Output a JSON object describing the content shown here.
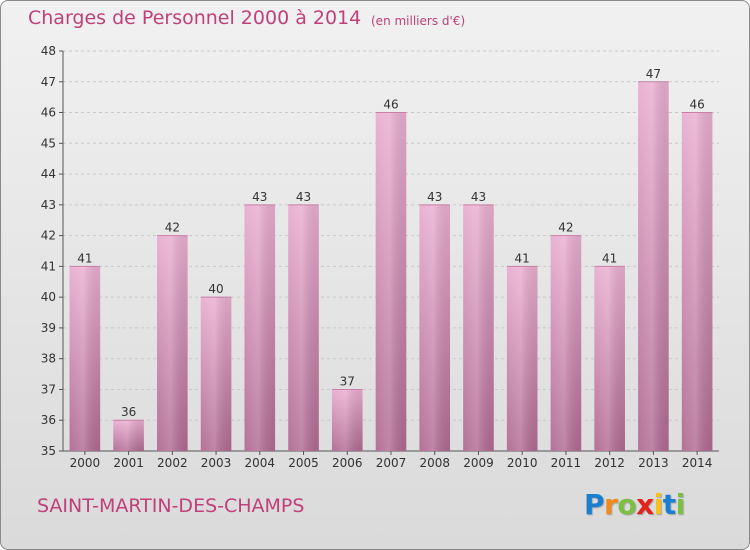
{
  "title": "Charges de Personnel 2000 à 2014",
  "subtitle": "(en milliers d'€)",
  "commune": "SAINT-MARTIN-DES-CHAMPS",
  "logo": {
    "letters": [
      "P",
      "r",
      "o",
      "x",
      "i",
      "t",
      "i"
    ],
    "colors": [
      "#1a7fd1",
      "#f08a1c",
      "#7bc043",
      "#e2231a",
      "#f6c018",
      "#1a7fd1",
      "#7bc043"
    ]
  },
  "colors": {
    "bar_top": "#e9aed0",
    "bar_bottom": "#b06a92",
    "text": "#c0407a"
  },
  "chart_data": {
    "type": "bar",
    "categories": [
      "2000",
      "2001",
      "2002",
      "2003",
      "2004",
      "2005",
      "2006",
      "2007",
      "2008",
      "2009",
      "2010",
      "2011",
      "2012",
      "2013",
      "2014"
    ],
    "values": [
      41,
      36,
      42,
      40,
      43,
      43,
      37,
      46,
      43,
      43,
      41,
      42,
      41,
      47,
      46
    ],
    "ylim": [
      35,
      48
    ],
    "yticks": [
      35,
      36,
      37,
      38,
      39,
      40,
      41,
      42,
      43,
      44,
      45,
      46,
      47,
      48
    ],
    "grid": true,
    "data_labels": true
  }
}
